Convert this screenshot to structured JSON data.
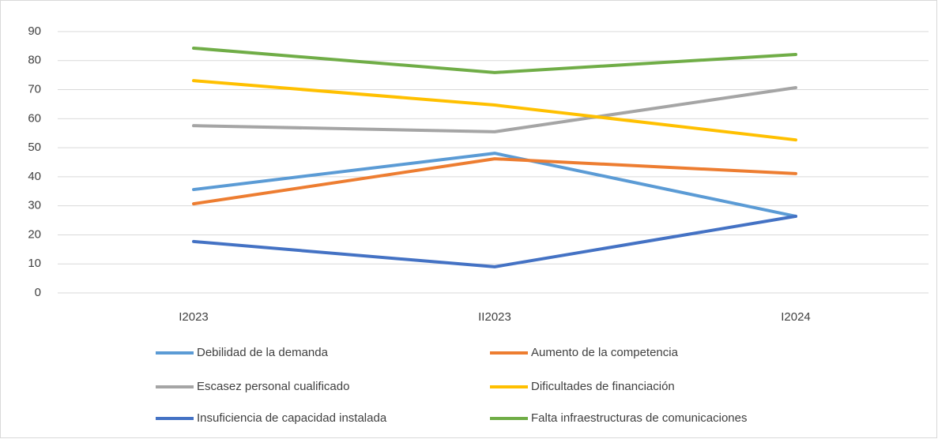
{
  "chart_data": {
    "type": "line",
    "categories": [
      "I2023",
      "II2023",
      "I2024"
    ],
    "series": [
      {
        "name": "Debilidad de la demanda",
        "color": "#5b9bd5",
        "values": [
          35.6,
          48.1,
          26.4
        ]
      },
      {
        "name": "Aumento de la competencia",
        "color": "#ed7d31",
        "values": [
          30.7,
          46.2,
          41.1
        ]
      },
      {
        "name": "Escasez personal cualificado",
        "color": "#a5a5a5",
        "values": [
          57.6,
          55.5,
          70.7
        ]
      },
      {
        "name": "Dificultades de financiación",
        "color": "#ffc000",
        "values": [
          73.1,
          64.7,
          52.7
        ]
      },
      {
        "name": "Insuficiencia de capacidad instalada",
        "color": "#4472c4",
        "values": [
          17.7,
          9.0,
          26.4
        ]
      },
      {
        "name": "Falta infraestructuras de comunicaciones",
        "color": "#70ad47",
        "values": [
          84.3,
          75.9,
          82.1
        ]
      }
    ],
    "ylim": [
      0,
      90
    ],
    "yticks": [
      0,
      10,
      20,
      30,
      40,
      50,
      60,
      70,
      80,
      90
    ],
    "grid": true,
    "legend": "bottom"
  }
}
